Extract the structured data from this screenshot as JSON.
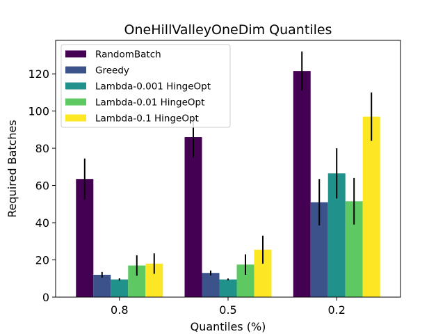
{
  "chart_data": {
    "type": "bar",
    "title": "OneHillValleyOneDim Quantiles",
    "xlabel": "Quantiles (%)",
    "ylabel": "Required Batches",
    "categories": [
      "0.8",
      "0.5",
      "0.2"
    ],
    "ylim": [
      0,
      138
    ],
    "yticks": [
      0,
      20,
      40,
      60,
      80,
      100,
      120
    ],
    "legend_position": "upper left",
    "series": [
      {
        "name": "RandomBatch",
        "color": "#440154",
        "values": [
          63.5,
          86,
          121.5
        ],
        "errors": [
          11,
          11,
          10.5
        ]
      },
      {
        "name": "Greedy",
        "color": "#3b528b",
        "values": [
          12,
          13,
          51
        ],
        "errors": [
          1.5,
          1.3,
          12.5
        ]
      },
      {
        "name": "Lambda-0.001 HingeOpt",
        "color": "#21918c",
        "values": [
          9.5,
          9.5,
          66.5
        ],
        "errors": [
          0.6,
          0.5,
          13.5
        ]
      },
      {
        "name": "Lambda-0.01 HingeOpt",
        "color": "#5ec962",
        "values": [
          17,
          17.5,
          51.5
        ],
        "errors": [
          5.5,
          5.5,
          12.5
        ]
      },
      {
        "name": "Lambda-0.1 HingeOpt",
        "color": "#fde725",
        "values": [
          18,
          25.5,
          97
        ],
        "errors": [
          5.5,
          7.5,
          13
        ]
      }
    ]
  }
}
